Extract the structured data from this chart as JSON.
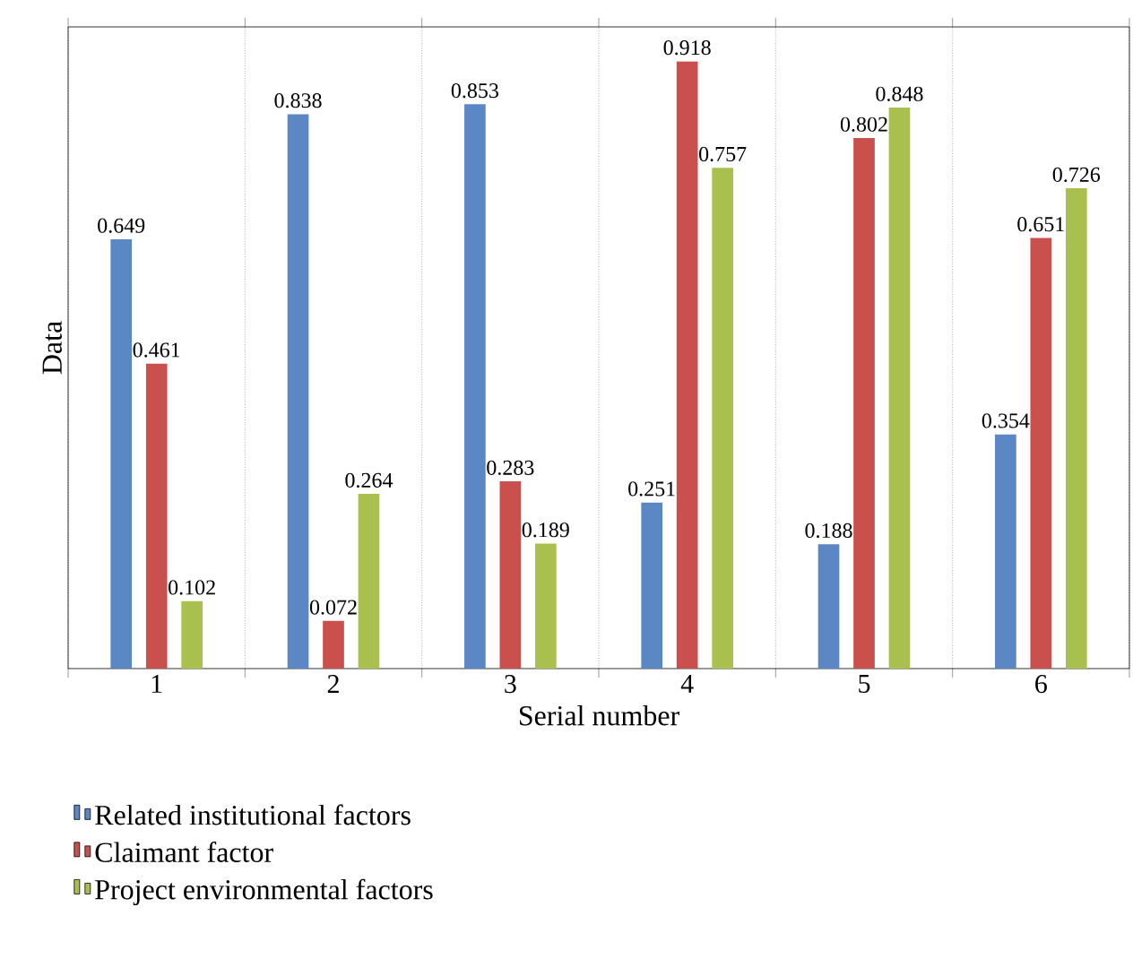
{
  "chart_data": {
    "type": "bar",
    "xlabel": "Serial number",
    "ylabel": "Data",
    "categories": [
      "1",
      "2",
      "3",
      "4",
      "5",
      "6"
    ],
    "series": [
      {
        "name": "Related institutional factors",
        "color": "#5b87c5",
        "values": [
          0.649,
          0.838,
          0.853,
          0.251,
          0.188,
          0.354
        ]
      },
      {
        "name": "Claimant factor",
        "color": "#c9504c",
        "values": [
          0.461,
          0.072,
          0.283,
          0.918,
          0.802,
          0.651
        ]
      },
      {
        "name": "Project environmental factors",
        "color": "#a9c04f",
        "values": [
          0.102,
          0.264,
          0.189,
          0.757,
          0.848,
          0.726
        ]
      }
    ],
    "ylim": [
      0,
      0.97
    ],
    "data_labels": true,
    "grid": "x",
    "legend": "bottom",
    "tick_labels": "x"
  }
}
